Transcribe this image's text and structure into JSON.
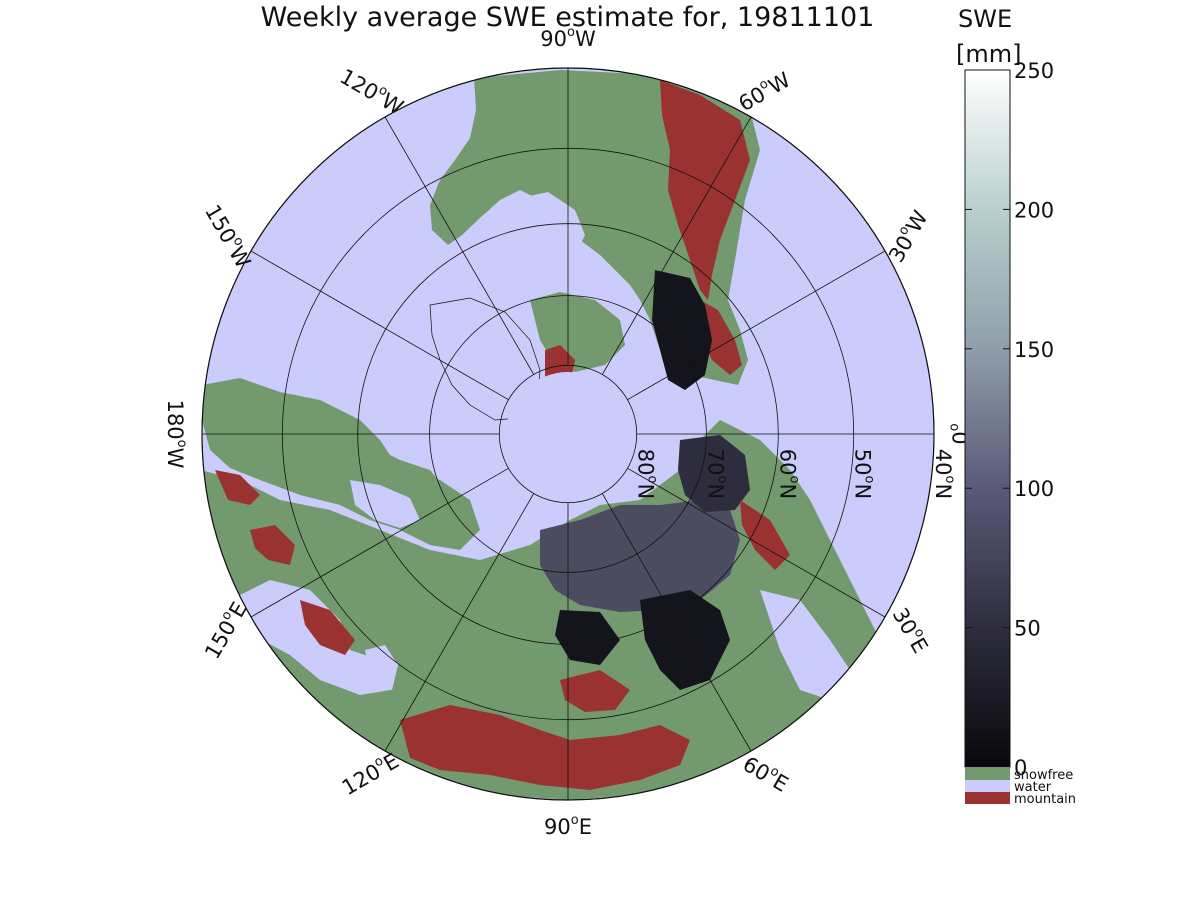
{
  "title": "Weekly average SWE estimate for, 19811101",
  "map": {
    "projection": "north polar stereographic",
    "lon_labels": [
      {
        "sup_base": "90",
        "sup": "o",
        "hemi": "W",
        "id": "lon-90w"
      },
      {
        "sup_base": "120",
        "sup": "o",
        "hemi": "W",
        "id": "lon-120w"
      },
      {
        "sup_base": "150",
        "sup": "o",
        "hemi": "W",
        "id": "lon-150w"
      },
      {
        "sup_base": "180",
        "sup": "o",
        "hemi": "W",
        "id": "lon-180w"
      },
      {
        "sup_base": "150",
        "sup": "o",
        "hemi": "E",
        "id": "lon-150e"
      },
      {
        "sup_base": "120",
        "sup": "o",
        "hemi": "E",
        "id": "lon-120e"
      },
      {
        "sup_base": "90",
        "sup": "o",
        "hemi": "E",
        "id": "lon-90e"
      },
      {
        "sup_base": "60",
        "sup": "o",
        "hemi": "E",
        "id": "lon-60e"
      },
      {
        "sup_base": "30",
        "sup": "o",
        "hemi": "E",
        "id": "lon-30e"
      },
      {
        "sup_base": "0",
        "sup": "o",
        "hemi": "",
        "id": "lon-0"
      },
      {
        "sup_base": "30",
        "sup": "o",
        "hemi": "W",
        "id": "lon-30w"
      },
      {
        "sup_base": "60",
        "sup": "o",
        "hemi": "W",
        "id": "lon-60w"
      }
    ],
    "lat_labels": [
      {
        "sup_base": "80",
        "sup": "o",
        "hemi": "N",
        "id": "lat-80n"
      },
      {
        "sup_base": "70",
        "sup": "o",
        "hemi": "N",
        "id": "lat-70n"
      },
      {
        "sup_base": "60",
        "sup": "o",
        "hemi": "N",
        "id": "lat-60n"
      },
      {
        "sup_base": "50",
        "sup": "o",
        "hemi": "N",
        "id": "lat-50n"
      },
      {
        "sup_base": "40",
        "sup": "o",
        "hemi": "N",
        "id": "lat-40n"
      }
    ]
  },
  "colorbar": {
    "title_line1": "SWE",
    "title_line2": "[mm]",
    "ticks": [
      "0",
      "50",
      "100",
      "150",
      "200",
      "250"
    ],
    "range": [
      0,
      250
    ],
    "gradient_stops": [
      "#08080c",
      "#2e2d3e",
      "#5a5a78",
      "#8f9eaa",
      "#b9d0ce",
      "#ffffff"
    ],
    "categories": [
      {
        "label": "snowfree",
        "color": "#739a6f"
      },
      {
        "label": "water",
        "color": "#ccccfc"
      },
      {
        "label": "mountain",
        "color": "#9a3232"
      }
    ]
  },
  "colors": {
    "water": "#ccccfc",
    "land": "#739a6f",
    "mountain": "#9a3232",
    "snow_dark": "#14141c",
    "snow_mid": "#4c4c60"
  }
}
